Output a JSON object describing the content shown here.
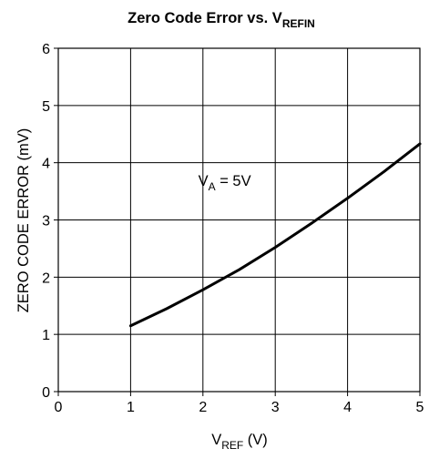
{
  "chart_data": {
    "type": "line",
    "title": {
      "main": "Zero Code Error vs. V",
      "sub": "REFIN"
    },
    "xlabel": {
      "main": "V",
      "sub": "REF",
      "suffix": " (V)"
    },
    "ylabel": "ZERO CODE ERROR (mV)",
    "xlim": [
      0,
      5
    ],
    "ylim": [
      0,
      6
    ],
    "xticks": [
      0,
      1,
      2,
      3,
      4,
      5
    ],
    "yticks": [
      0,
      1,
      2,
      3,
      4,
      5,
      6
    ],
    "xtick_labels": [
      "0",
      "1",
      "2",
      "3",
      "4",
      "5"
    ],
    "ytick_labels": [
      "0",
      "1",
      "2",
      "3",
      "4",
      "5",
      "6"
    ],
    "grid": true,
    "series": [
      {
        "x": [
          1.0,
          1.5,
          2.0,
          2.5,
          3.0,
          3.5,
          4.0,
          4.5,
          5.0
        ],
        "y": [
          1.15,
          1.45,
          1.78,
          2.13,
          2.52,
          2.94,
          3.38,
          3.84,
          4.33
        ]
      }
    ],
    "annotations": [
      {
        "text_main": "V",
        "text_sub": "A",
        "text_suffix": " = 5V",
        "x": 2.3,
        "y": 3.6
      }
    ],
    "colors": {
      "line": "#000000",
      "grid": "#000000",
      "background": "#ffffff"
    }
  }
}
